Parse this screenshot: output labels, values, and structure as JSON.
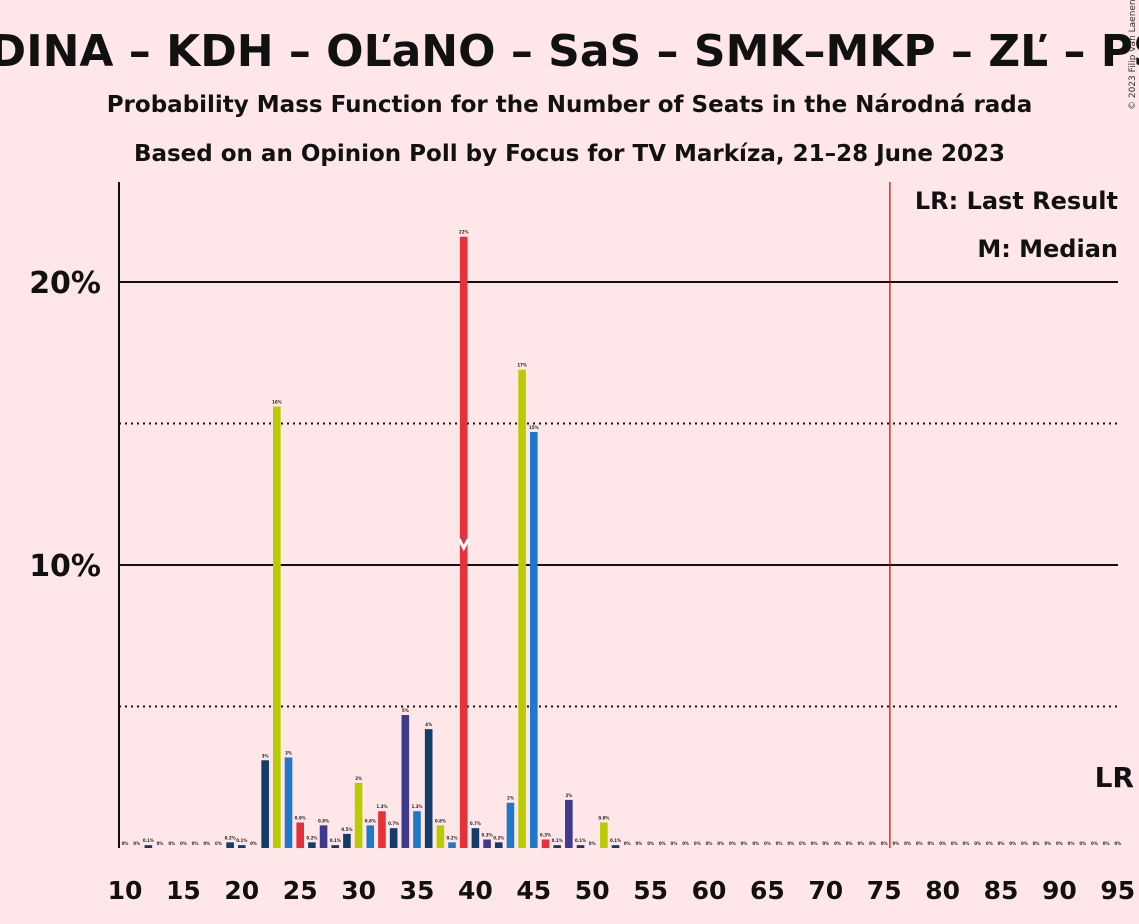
{
  "header": {
    "title": "ODINA – KDH – OĽaNO – SaS – SMK–MKP – ZĽ – PS–",
    "subtitle_1": "Probability Mass Function for the Number of Seats in the Národná rada",
    "subtitle_2": "Based on an Opinion Poll by Focus for TV Markíza, 21–28 June 2023",
    "copyright": "© 2023 Filip van Laenen"
  },
  "legend": {
    "last_result": "LR: Last Result",
    "median": "M: Median",
    "lr_marker": "LR"
  },
  "colors": {
    "background": "#FFE6E8",
    "majority_line": "#CC0000",
    "median_marker": "#FFFFFF"
  },
  "chart_data": {
    "type": "bar",
    "x_range": [
      10,
      95
    ],
    "ylim": [
      0,
      23.5
    ],
    "y_ticks": [
      {
        "value": 10,
        "label": "10%",
        "line": "solid"
      },
      {
        "value": 20,
        "label": "20%",
        "line": "solid"
      }
    ],
    "dotted_gridlines": [
      5,
      15
    ],
    "x_ticks": [
      10,
      15,
      20,
      25,
      30,
      35,
      40,
      45,
      50,
      55,
      60,
      65,
      70,
      75,
      80,
      85,
      90,
      95
    ],
    "majority_line_x": 76,
    "median_x": 39,
    "last_result_x": 95,
    "bars": [
      {
        "x": 10,
        "value": 0,
        "label": "0%",
        "color": "#123C69"
      },
      {
        "x": 11,
        "value": 0,
        "label": "0%",
        "color": "#1F78C8"
      },
      {
        "x": 12,
        "value": 0.1,
        "label": "0.1%",
        "color": "#123C69"
      },
      {
        "x": 13,
        "value": 0,
        "label": "0%",
        "color": "#123C69"
      },
      {
        "x": 14,
        "value": 0,
        "label": "0%",
        "color": "#123C69"
      },
      {
        "x": 15,
        "value": 0,
        "label": "0%",
        "color": "#123C69"
      },
      {
        "x": 16,
        "value": 0,
        "label": "0%",
        "color": "#123C69"
      },
      {
        "x": 17,
        "value": 0,
        "label": "0%",
        "color": "#123C69"
      },
      {
        "x": 18,
        "value": 0,
        "label": "0%",
        "color": "#123C69"
      },
      {
        "x": 19,
        "value": 0.2,
        "label": "0.2%",
        "color": "#123C69"
      },
      {
        "x": 20,
        "value": 0.1,
        "label": "0.1%",
        "color": "#123C69"
      },
      {
        "x": 21,
        "value": 0,
        "label": "0%",
        "color": "#123C69"
      },
      {
        "x": 22,
        "value": 3.1,
        "label": "3%",
        "color": "#123C69"
      },
      {
        "x": 23,
        "value": 15.6,
        "label": "16%",
        "color": "#B8CC00"
      },
      {
        "x": 24,
        "value": 3.2,
        "label": "3%",
        "color": "#1F78C8"
      },
      {
        "x": 25,
        "value": 0.9,
        "label": "0.9%",
        "color": "#E8303A"
      },
      {
        "x": 26,
        "value": 0.2,
        "label": "0.2%",
        "color": "#123C69"
      },
      {
        "x": 27,
        "value": 0.8,
        "label": "0.8%",
        "color": "#3E3A8C"
      },
      {
        "x": 28,
        "value": 0.1,
        "label": "0.1%",
        "color": "#123C69"
      },
      {
        "x": 29,
        "value": 0.5,
        "label": "0.5%",
        "color": "#123C69"
      },
      {
        "x": 30,
        "value": 2.3,
        "label": "2%",
        "color": "#B8CC00"
      },
      {
        "x": 31,
        "value": 0.8,
        "label": "0.8%",
        "color": "#1F78C8"
      },
      {
        "x": 32,
        "value": 1.3,
        "label": "1.3%",
        "color": "#E8303A"
      },
      {
        "x": 33,
        "value": 0.7,
        "label": "0.7%",
        "color": "#123C69"
      },
      {
        "x": 34,
        "value": 4.7,
        "label": "5%",
        "color": "#3E3A8C"
      },
      {
        "x": 35,
        "value": 1.3,
        "label": "1.3%",
        "color": "#1F78C8"
      },
      {
        "x": 36,
        "value": 4.2,
        "label": "4%",
        "color": "#123C69"
      },
      {
        "x": 37,
        "value": 0.8,
        "label": "0.8%",
        "color": "#B8CC00"
      },
      {
        "x": 38,
        "value": 0.2,
        "label": "0.2%",
        "color": "#1F78C8"
      },
      {
        "x": 39,
        "value": 21.6,
        "label": "22%",
        "color": "#E8303A"
      },
      {
        "x": 40,
        "value": 0.7,
        "label": "0.7%",
        "color": "#123C69"
      },
      {
        "x": 41,
        "value": 0.3,
        "label": "0.3%",
        "color": "#3E3A8C"
      },
      {
        "x": 42,
        "value": 0.2,
        "label": "0.2%",
        "color": "#123C69"
      },
      {
        "x": 43,
        "value": 1.6,
        "label": "2%",
        "color": "#1F78C8"
      },
      {
        "x": 44,
        "value": 16.9,
        "label": "17%",
        "color": "#B8CC00"
      },
      {
        "x": 45,
        "value": 14.7,
        "label": "15%",
        "color": "#1F78C8"
      },
      {
        "x": 46,
        "value": 0.3,
        "label": "0.3%",
        "color": "#E8303A"
      },
      {
        "x": 47,
        "value": 0.1,
        "label": "0.1%",
        "color": "#123C69"
      },
      {
        "x": 48,
        "value": 1.7,
        "label": "2%",
        "color": "#3E3A8C"
      },
      {
        "x": 49,
        "value": 0.1,
        "label": "0.1%",
        "color": "#123C69"
      },
      {
        "x": 50,
        "value": 0,
        "label": "0%",
        "color": "#123C69"
      },
      {
        "x": 51,
        "value": 0.9,
        "label": "0.9%",
        "color": "#B8CC00"
      },
      {
        "x": 52,
        "value": 0.1,
        "label": "0.1%",
        "color": "#123C69"
      },
      {
        "x": 53,
        "value": 0,
        "label": "0%",
        "color": "#123C69"
      },
      {
        "x": 54,
        "value": 0,
        "label": "0%",
        "color": "#123C69"
      },
      {
        "x": 55,
        "value": 0,
        "label": "0%",
        "color": "#123C69"
      },
      {
        "x": 56,
        "value": 0,
        "label": "0%",
        "color": "#123C69"
      },
      {
        "x": 57,
        "value": 0,
        "label": "0%",
        "color": "#123C69"
      },
      {
        "x": 58,
        "value": 0,
        "label": "0%",
        "color": "#123C69"
      },
      {
        "x": 59,
        "value": 0,
        "label": "0%",
        "color": "#123C69"
      },
      {
        "x": 60,
        "value": 0,
        "label": "0%",
        "color": "#123C69"
      },
      {
        "x": 61,
        "value": 0,
        "label": "0%",
        "color": "#123C69"
      },
      {
        "x": 62,
        "value": 0,
        "label": "0%",
        "color": "#123C69"
      },
      {
        "x": 63,
        "value": 0,
        "label": "0%",
        "color": "#123C69"
      },
      {
        "x": 64,
        "value": 0,
        "label": "0%",
        "color": "#123C69"
      },
      {
        "x": 65,
        "value": 0,
        "label": "0%",
        "color": "#123C69"
      },
      {
        "x": 66,
        "value": 0,
        "label": "0%",
        "color": "#123C69"
      },
      {
        "x": 67,
        "value": 0,
        "label": "0%",
        "color": "#123C69"
      },
      {
        "x": 68,
        "value": 0,
        "label": "0%",
        "color": "#123C69"
      },
      {
        "x": 69,
        "value": 0,
        "label": "0%",
        "color": "#123C69"
      },
      {
        "x": 70,
        "value": 0,
        "label": "0%",
        "color": "#123C69"
      },
      {
        "x": 71,
        "value": 0,
        "label": "0%",
        "color": "#123C69"
      },
      {
        "x": 72,
        "value": 0,
        "label": "0%",
        "color": "#123C69"
      },
      {
        "x": 73,
        "value": 0,
        "label": "0%",
        "color": "#123C69"
      },
      {
        "x": 74,
        "value": 0,
        "label": "0%",
        "color": "#123C69"
      },
      {
        "x": 75,
        "value": 0,
        "label": "0%",
        "color": "#123C69"
      },
      {
        "x": 76,
        "value": 0,
        "label": "0%",
        "color": "#123C69"
      },
      {
        "x": 77,
        "value": 0,
        "label": "0%",
        "color": "#123C69"
      },
      {
        "x": 78,
        "value": 0,
        "label": "0%",
        "color": "#123C69"
      },
      {
        "x": 79,
        "value": 0,
        "label": "0%",
        "color": "#123C69"
      },
      {
        "x": 80,
        "value": 0,
        "label": "0%",
        "color": "#123C69"
      },
      {
        "x": 81,
        "value": 0,
        "label": "0%",
        "color": "#123C69"
      },
      {
        "x": 82,
        "value": 0,
        "label": "0%",
        "color": "#123C69"
      },
      {
        "x": 83,
        "value": 0,
        "label": "0%",
        "color": "#123C69"
      },
      {
        "x": 84,
        "value": 0,
        "label": "0%",
        "color": "#123C69"
      },
      {
        "x": 85,
        "value": 0,
        "label": "0%",
        "color": "#123C69"
      },
      {
        "x": 86,
        "value": 0,
        "label": "0%",
        "color": "#123C69"
      },
      {
        "x": 87,
        "value": 0,
        "label": "0%",
        "color": "#123C69"
      },
      {
        "x": 88,
        "value": 0,
        "label": "0%",
        "color": "#123C69"
      },
      {
        "x": 89,
        "value": 0,
        "label": "0%",
        "color": "#123C69"
      },
      {
        "x": 90,
        "value": 0,
        "label": "0%",
        "color": "#123C69"
      },
      {
        "x": 91,
        "value": 0,
        "label": "0%",
        "color": "#123C69"
      },
      {
        "x": 92,
        "value": 0,
        "label": "0%",
        "color": "#123C69"
      },
      {
        "x": 93,
        "value": 0,
        "label": "0%",
        "color": "#123C69"
      },
      {
        "x": 94,
        "value": 0,
        "label": "0%",
        "color": "#123C69"
      },
      {
        "x": 95,
        "value": 0,
        "label": "0%",
        "color": "#123C69"
      }
    ]
  }
}
